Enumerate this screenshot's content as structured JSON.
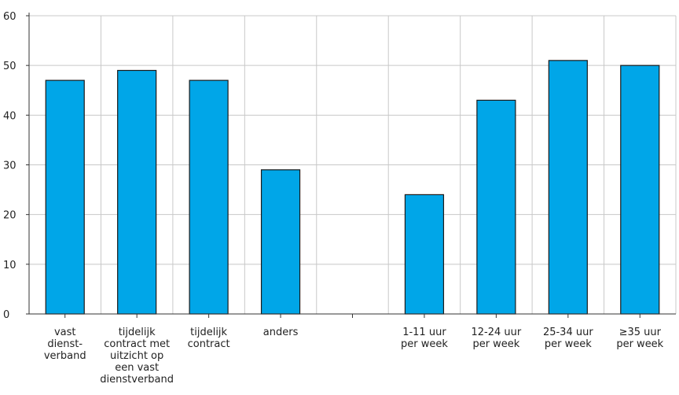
{
  "chart_data": {
    "type": "bar",
    "categories": [
      [
        "vast",
        "dienst-",
        "verband"
      ],
      [
        "tijdelijk",
        "contract met",
        "uitzicht  op",
        "een vast",
        "dienstverband"
      ],
      [
        "tijdelijk",
        "contract"
      ],
      [
        "anders"
      ],
      [],
      [
        "1-11 uur",
        "per week"
      ],
      [
        "12-24 uur",
        "per week"
      ],
      [
        "25-34 uur",
        "per week"
      ],
      [
        "≥35 uur",
        "per week"
      ]
    ],
    "values": [
      47,
      49,
      47,
      29,
      null,
      24,
      43,
      51,
      50
    ],
    "ylim": [
      0,
      60
    ],
    "yticks": [
      "0",
      "10",
      "20",
      "30",
      "40",
      "50",
      "60"
    ],
    "grid": true,
    "bar_color": "#00a6e8",
    "bar_edge_color": "#1a1a1a",
    "grid_color": "#c8c8c8"
  }
}
